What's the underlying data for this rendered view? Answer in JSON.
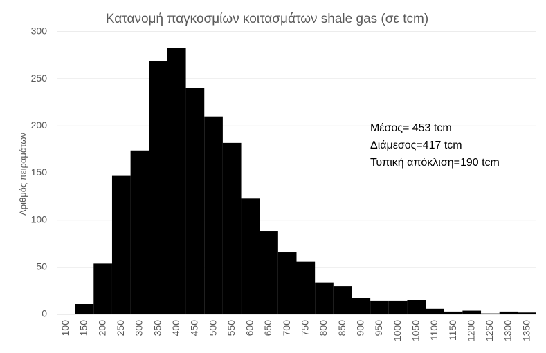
{
  "chart_data": {
    "type": "bar",
    "title": "Κατανομή παγκοσμίων κοιτασμάτων shale gas (σε tcm)",
    "y_label": "Αριθμός πειραμάτων",
    "annotations": [
      "Μέσος= 453 tcm",
      "Διάμεσος=417 tcm",
      "Τυπική απόκλιση=190 tcm"
    ],
    "categories": [
      "100",
      "150",
      "200",
      "250",
      "300",
      "350",
      "400",
      "450",
      "500",
      "550",
      "600",
      "650",
      "700",
      "750",
      "800",
      "850",
      "900",
      "950",
      "1000",
      "1050",
      "1100",
      "1150",
      "1200",
      "1250",
      "1300",
      "1350"
    ],
    "values": [
      0,
      11,
      54,
      147,
      174,
      269,
      283,
      240,
      210,
      182,
      123,
      88,
      66,
      56,
      34,
      30,
      17,
      14,
      14,
      15,
      6,
      3,
      4,
      1,
      3,
      2
    ],
    "color": "#000000",
    "ylim": [
      0,
      300
    ],
    "yticks": [
      0,
      50,
      100,
      150,
      200,
      250,
      300
    ],
    "grid": true
  }
}
